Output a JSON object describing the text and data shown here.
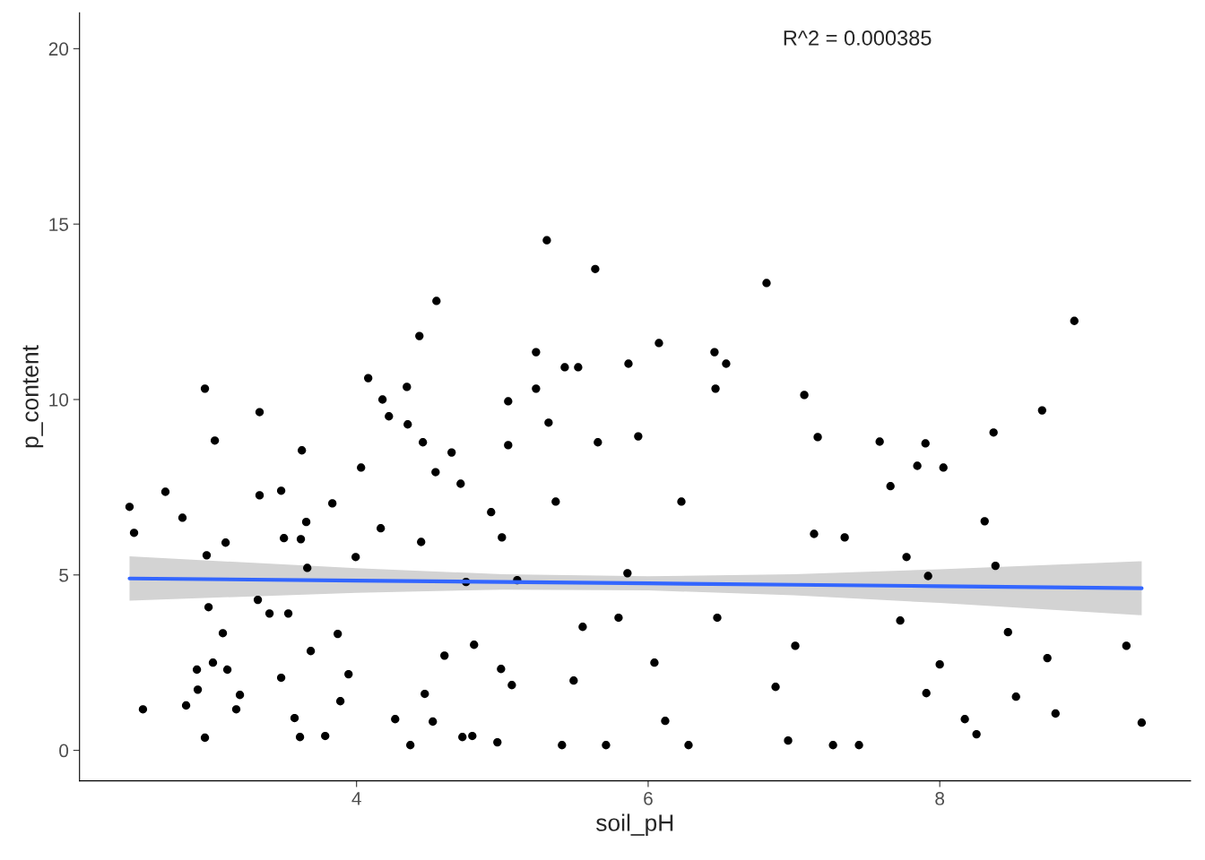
{
  "chart_data": {
    "type": "scatter",
    "xlabel": "soil_pH",
    "ylabel": "p_content",
    "annotations": [
      "R^2 = 0.000385"
    ],
    "xlim": [
      2.1,
      9.72
    ],
    "ylim": [
      -0.87,
      21.02
    ],
    "xticks": [
      4,
      6,
      8
    ],
    "yticks": [
      0,
      5,
      10,
      15,
      20
    ],
    "grid": false,
    "legend": false,
    "series": [
      {
        "color": "#000000",
        "marker": "circle",
        "x": [
          2.443,
          2.474,
          2.535,
          2.689,
          2.806,
          2.831,
          2.905,
          2.911,
          2.96,
          2.96,
          2.972,
          2.985,
          3.015,
          3.028,
          3.083,
          3.102,
          3.114,
          3.175,
          3.2,
          3.335,
          3.335,
          3.323,
          3.403,
          3.483,
          3.502,
          3.483,
          3.532,
          3.575,
          3.618,
          3.612,
          3.625,
          3.655,
          3.662,
          3.686,
          3.785,
          3.834,
          3.871,
          3.889,
          3.945,
          3.994,
          4.031,
          4.08,
          4.178,
          4.222,
          4.166,
          4.265,
          4.345,
          4.351,
          4.369,
          4.431,
          4.548,
          4.455,
          4.542,
          4.468,
          4.603,
          4.523,
          4.443,
          4.726,
          4.714,
          4.652,
          4.806,
          4.794,
          4.923,
          4.991,
          5.04,
          5.04,
          5.065,
          4.966,
          5.102,
          5.231,
          5.231,
          5.305,
          5.317,
          5.428,
          5.52,
          5.637,
          5.655,
          5.865,
          5.932,
          6.074,
          5.409,
          5.711,
          6.117,
          6.277,
          6.455,
          6.535,
          6.462,
          6.812,
          6.874,
          6.96,
          7.071,
          7.163,
          7.138,
          7.009,
          7.268,
          7.446,
          7.348,
          7.588,
          7.662,
          7.729,
          7.772,
          7.846,
          7.902,
          7.908,
          8.025,
          8.0,
          8.172,
          8.252,
          8.308,
          8.369,
          8.382,
          8.468,
          8.523,
          8.702,
          8.738,
          8.794,
          8.923,
          9.28,
          9.385,
          7.92,
          5.551,
          5.858,
          4.997,
          5.366,
          6.228,
          6.043,
          5.797,
          6.474,
          4.751,
          5.489
        ],
        "values": [
          6.94,
          6.2,
          1.17,
          7.37,
          6.63,
          1.28,
          2.3,
          1.73,
          0.36,
          10.31,
          5.56,
          4.08,
          2.5,
          8.83,
          3.34,
          5.92,
          2.3,
          1.17,
          1.58,
          9.64,
          7.27,
          4.29,
          3.9,
          7.4,
          6.05,
          2.07,
          3.9,
          0.92,
          6.02,
          0.38,
          8.55,
          6.51,
          5.2,
          2.83,
          0.41,
          7.04,
          3.32,
          1.4,
          2.17,
          5.51,
          8.06,
          10.61,
          10.0,
          9.52,
          6.33,
          0.89,
          10.36,
          9.29,
          0.15,
          11.81,
          12.81,
          8.78,
          7.93,
          1.61,
          2.7,
          0.82,
          5.94,
          0.38,
          7.6,
          8.49,
          3.01,
          0.41,
          6.79,
          2.32,
          8.7,
          9.95,
          1.86,
          0.23,
          4.85,
          11.35,
          10.31,
          14.54,
          9.34,
          10.92,
          10.92,
          13.72,
          8.78,
          11.02,
          8.95,
          11.61,
          0.15,
          0.15,
          0.84,
          0.15,
          11.35,
          11.02,
          10.31,
          13.32,
          1.81,
          0.28,
          10.13,
          8.93,
          6.17,
          2.98,
          0.15,
          0.15,
          6.07,
          8.8,
          7.53,
          3.7,
          5.51,
          8.11,
          8.75,
          1.63,
          8.06,
          2.45,
          0.89,
          0.46,
          6.53,
          9.06,
          5.26,
          3.37,
          1.53,
          9.69,
          2.63,
          1.05,
          12.24,
          2.98,
          0.79,
          4.97,
          3.52,
          5.05,
          6.07,
          7.09,
          7.09,
          2.5,
          3.78,
          3.78,
          4.8,
          1.99
        ]
      },
      {
        "type": "line",
        "color": "#3366ff",
        "x": [
          2.443,
          4,
          5,
          6,
          7,
          8,
          9.385
        ],
        "marker": "none",
        "values": [
          4.9,
          4.84,
          4.8,
          4.76,
          4.72,
          4.68,
          4.62
        ],
        "lower": [
          4.27,
          4.49,
          4.58,
          4.56,
          4.42,
          4.2,
          3.85
        ],
        "upper": [
          5.53,
          5.19,
          5.02,
          4.96,
          5.02,
          5.16,
          5.39
        ]
      }
    ]
  }
}
